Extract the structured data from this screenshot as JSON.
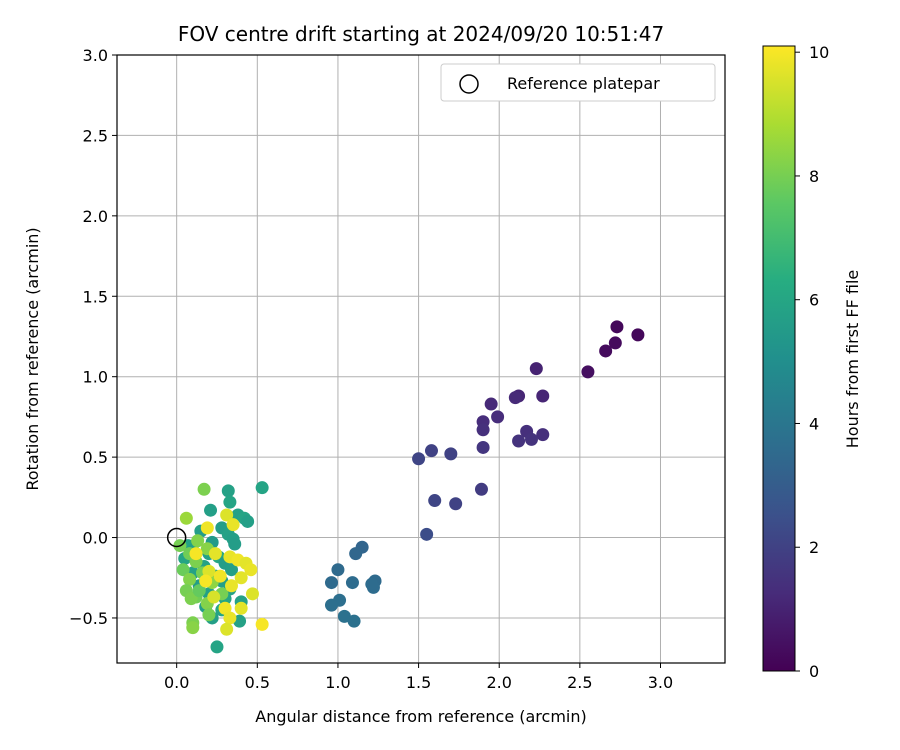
{
  "chart_data": {
    "type": "scatter",
    "title": "FOV centre drift starting at 2024/09/20 10:51:47",
    "xlabel": "Angular distance from reference (arcmin)",
    "ylabel": "Rotation from reference (arcmin)",
    "xlim": [
      -0.37,
      3.4
    ],
    "ylim": [
      -0.78,
      3.0
    ],
    "xticks": [
      0.0,
      0.5,
      1.0,
      1.5,
      2.0,
      2.5,
      3.0
    ],
    "xtick_labels": [
      "0.0",
      "0.5",
      "1.0",
      "1.5",
      "2.0",
      "2.5",
      "3.0"
    ],
    "yticks": [
      -0.5,
      0.0,
      0.5,
      1.0,
      1.5,
      2.0,
      2.5,
      3.0
    ],
    "ytick_labels": [
      "−0.5",
      "0.0",
      "0.5",
      "1.0",
      "1.5",
      "2.0",
      "2.5",
      "3.0"
    ],
    "grid": true,
    "legend": {
      "position": "top-right",
      "entries": [
        "Reference platepar"
      ]
    },
    "reference_point": {
      "x": 0.0,
      "y": 0.0
    },
    "colorbar": {
      "label": "Hours from first FF file",
      "colormap": "viridis",
      "range": [
        0,
        10.1
      ],
      "ticks": [
        0,
        2,
        4,
        6,
        8,
        10
      ],
      "tick_labels": [
        "0",
        "2",
        "4",
        "6",
        "8",
        "10"
      ]
    },
    "points": [
      {
        "x": 2.73,
        "y": 1.31,
        "h": 0.2
      },
      {
        "x": 2.86,
        "y": 1.26,
        "h": 0.2
      },
      {
        "x": 2.72,
        "y": 1.21,
        "h": 0.3
      },
      {
        "x": 2.66,
        "y": 1.16,
        "h": 0.3
      },
      {
        "x": 2.55,
        "y": 1.03,
        "h": 0.4
      },
      {
        "x": 2.23,
        "y": 1.05,
        "h": 1.0
      },
      {
        "x": 2.27,
        "y": 0.88,
        "h": 1.1
      },
      {
        "x": 2.12,
        "y": 0.88,
        "h": 1.1
      },
      {
        "x": 2.1,
        "y": 0.87,
        "h": 1.2
      },
      {
        "x": 1.95,
        "y": 0.83,
        "h": 1.2
      },
      {
        "x": 1.99,
        "y": 0.75,
        "h": 1.3
      },
      {
        "x": 1.9,
        "y": 0.72,
        "h": 1.3
      },
      {
        "x": 1.9,
        "y": 0.67,
        "h": 1.4
      },
      {
        "x": 2.17,
        "y": 0.66,
        "h": 1.4
      },
      {
        "x": 2.27,
        "y": 0.64,
        "h": 1.4
      },
      {
        "x": 2.12,
        "y": 0.6,
        "h": 1.5
      },
      {
        "x": 2.2,
        "y": 0.61,
        "h": 1.5
      },
      {
        "x": 1.9,
        "y": 0.56,
        "h": 1.6
      },
      {
        "x": 1.58,
        "y": 0.54,
        "h": 2.0
      },
      {
        "x": 1.7,
        "y": 0.52,
        "h": 2.0
      },
      {
        "x": 1.5,
        "y": 0.49,
        "h": 2.1
      },
      {
        "x": 1.89,
        "y": 0.3,
        "h": 1.8
      },
      {
        "x": 1.6,
        "y": 0.23,
        "h": 2.1
      },
      {
        "x": 1.73,
        "y": 0.21,
        "h": 2.0
      },
      {
        "x": 1.55,
        "y": 0.02,
        "h": 2.4
      },
      {
        "x": 1.15,
        "y": -0.06,
        "h": 3.3
      },
      {
        "x": 1.11,
        "y": -0.1,
        "h": 3.4
      },
      {
        "x": 1.0,
        "y": -0.2,
        "h": 3.5
      },
      {
        "x": 0.96,
        "y": -0.28,
        "h": 3.5
      },
      {
        "x": 1.09,
        "y": -0.28,
        "h": 3.6
      },
      {
        "x": 1.23,
        "y": -0.27,
        "h": 3.5
      },
      {
        "x": 1.21,
        "y": -0.29,
        "h": 3.6
      },
      {
        "x": 1.22,
        "y": -0.31,
        "h": 3.6
      },
      {
        "x": 1.01,
        "y": -0.39,
        "h": 3.7
      },
      {
        "x": 0.96,
        "y": -0.42,
        "h": 3.7
      },
      {
        "x": 1.04,
        "y": -0.49,
        "h": 3.8
      },
      {
        "x": 1.1,
        "y": -0.52,
        "h": 3.8
      },
      {
        "x": 0.53,
        "y": 0.31,
        "h": 5.9
      },
      {
        "x": 0.32,
        "y": 0.29,
        "h": 5.8
      },
      {
        "x": 0.33,
        "y": 0.22,
        "h": 5.9
      },
      {
        "x": 0.21,
        "y": 0.17,
        "h": 5.7
      },
      {
        "x": 0.38,
        "y": 0.14,
        "h": 5.8
      },
      {
        "x": 0.42,
        "y": 0.12,
        "h": 5.9
      },
      {
        "x": 0.44,
        "y": 0.1,
        "h": 5.7
      },
      {
        "x": 0.28,
        "y": 0.06,
        "h": 5.6
      },
      {
        "x": 0.15,
        "y": 0.04,
        "h": 5.6
      },
      {
        "x": 0.32,
        "y": 0.02,
        "h": 5.8
      },
      {
        "x": 0.35,
        "y": -0.01,
        "h": 5.7
      },
      {
        "x": 0.36,
        "y": -0.04,
        "h": 5.6
      },
      {
        "x": 0.22,
        "y": -0.03,
        "h": 5.5
      },
      {
        "x": 0.07,
        "y": -0.05,
        "h": 5.9
      },
      {
        "x": 0.1,
        "y": -0.08,
        "h": 5.7
      },
      {
        "x": 0.2,
        "y": -0.1,
        "h": 5.8
      },
      {
        "x": 0.26,
        "y": -0.12,
        "h": 6.0
      },
      {
        "x": 0.05,
        "y": -0.13,
        "h": 5.9
      },
      {
        "x": 0.3,
        "y": -0.16,
        "h": 5.6
      },
      {
        "x": 0.17,
        "y": -0.18,
        "h": 5.8
      },
      {
        "x": 0.34,
        "y": -0.2,
        "h": 5.7
      },
      {
        "x": 0.1,
        "y": -0.22,
        "h": 5.8
      },
      {
        "x": 0.24,
        "y": -0.24,
        "h": 6.0
      },
      {
        "x": 0.28,
        "y": -0.27,
        "h": 5.7
      },
      {
        "x": 0.14,
        "y": -0.3,
        "h": 5.6
      },
      {
        "x": 0.33,
        "y": -0.32,
        "h": 5.8
      },
      {
        "x": 0.2,
        "y": -0.35,
        "h": 5.7
      },
      {
        "x": 0.3,
        "y": -0.38,
        "h": 5.9
      },
      {
        "x": 0.4,
        "y": -0.4,
        "h": 5.8
      },
      {
        "x": 0.18,
        "y": -0.43,
        "h": 5.6
      },
      {
        "x": 0.28,
        "y": -0.45,
        "h": 5.9
      },
      {
        "x": 0.22,
        "y": -0.5,
        "h": 5.7
      },
      {
        "x": 0.39,
        "y": -0.52,
        "h": 5.8
      },
      {
        "x": 0.25,
        "y": -0.68,
        "h": 5.9
      },
      {
        "x": 0.17,
        "y": 0.3,
        "h": 8.1
      },
      {
        "x": 0.06,
        "y": 0.12,
        "h": 8.6
      },
      {
        "x": 0.02,
        "y": -0.05,
        "h": 8.0
      },
      {
        "x": 0.13,
        "y": -0.02,
        "h": 8.2
      },
      {
        "x": 0.08,
        "y": -0.1,
        "h": 7.9
      },
      {
        "x": 0.12,
        "y": -0.15,
        "h": 8.1
      },
      {
        "x": 0.19,
        "y": -0.07,
        "h": 8.3
      },
      {
        "x": 0.04,
        "y": -0.2,
        "h": 7.8
      },
      {
        "x": 0.16,
        "y": -0.22,
        "h": 8.0
      },
      {
        "x": 0.08,
        "y": -0.26,
        "h": 8.2
      },
      {
        "x": 0.22,
        "y": -0.28,
        "h": 8.4
      },
      {
        "x": 0.06,
        "y": -0.33,
        "h": 8.0
      },
      {
        "x": 0.12,
        "y": -0.37,
        "h": 7.9
      },
      {
        "x": 0.09,
        "y": -0.38,
        "h": 8.1
      },
      {
        "x": 0.19,
        "y": -0.41,
        "h": 8.2
      },
      {
        "x": 0.2,
        "y": -0.48,
        "h": 8.0
      },
      {
        "x": 0.1,
        "y": -0.53,
        "h": 8.1
      },
      {
        "x": 0.1,
        "y": -0.56,
        "h": 8.3
      },
      {
        "x": 0.28,
        "y": -0.35,
        "h": 8.0
      },
      {
        "x": 0.14,
        "y": -0.33,
        "h": 7.7
      },
      {
        "x": 0.31,
        "y": 0.14,
        "h": 9.6
      },
      {
        "x": 0.35,
        "y": 0.08,
        "h": 9.8
      },
      {
        "x": 0.19,
        "y": 0.06,
        "h": 9.9
      },
      {
        "x": 0.12,
        "y": -0.1,
        "h": 10.0
      },
      {
        "x": 0.24,
        "y": -0.1,
        "h": 9.7
      },
      {
        "x": 0.33,
        "y": -0.12,
        "h": 9.8
      },
      {
        "x": 0.38,
        "y": -0.14,
        "h": 9.9
      },
      {
        "x": 0.43,
        "y": -0.16,
        "h": 9.7
      },
      {
        "x": 0.46,
        "y": -0.2,
        "h": 9.8
      },
      {
        "x": 0.2,
        "y": -0.21,
        "h": 9.6
      },
      {
        "x": 0.27,
        "y": -0.24,
        "h": 9.9
      },
      {
        "x": 0.4,
        "y": -0.25,
        "h": 9.7
      },
      {
        "x": 0.18,
        "y": -0.27,
        "h": 10.0
      },
      {
        "x": 0.34,
        "y": -0.3,
        "h": 9.8
      },
      {
        "x": 0.47,
        "y": -0.35,
        "h": 9.6
      },
      {
        "x": 0.3,
        "y": -0.44,
        "h": 9.9
      },
      {
        "x": 0.4,
        "y": -0.44,
        "h": 9.7
      },
      {
        "x": 0.33,
        "y": -0.5,
        "h": 9.8
      },
      {
        "x": 0.31,
        "y": -0.57,
        "h": 9.6
      },
      {
        "x": 0.53,
        "y": -0.54,
        "h": 10.0
      },
      {
        "x": 0.23,
        "y": -0.37,
        "h": 9.5
      }
    ]
  }
}
